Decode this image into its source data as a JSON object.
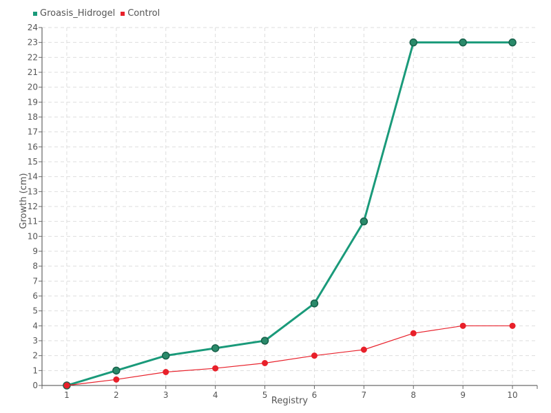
{
  "chart_data": {
    "type": "line",
    "title": "",
    "xlabel": "Registry",
    "ylabel": "Growth (cm)",
    "x": [
      1,
      2,
      3,
      4,
      5,
      6,
      7,
      8,
      9,
      10
    ],
    "xlim": [
      0.5,
      10.5
    ],
    "ylim": [
      0,
      24
    ],
    "yticks": [
      0,
      1,
      2,
      3,
      4,
      5,
      6,
      7,
      8,
      9,
      10,
      11,
      12,
      13,
      14,
      15,
      16,
      17,
      18,
      19,
      20,
      21,
      22,
      23,
      24
    ],
    "grid": true,
    "legend_position": "top-left",
    "series": [
      {
        "name": "Groasis_Hidrogel",
        "color": "#1a9a7a",
        "values": [
          0,
          1,
          2,
          2.5,
          3,
          5.5,
          11,
          23,
          23,
          23
        ]
      },
      {
        "name": "Control",
        "color": "#e8202a",
        "values": [
          0,
          0.4,
          0.9,
          1.15,
          1.5,
          2,
          2.4,
          3.5,
          4,
          4
        ]
      }
    ]
  }
}
